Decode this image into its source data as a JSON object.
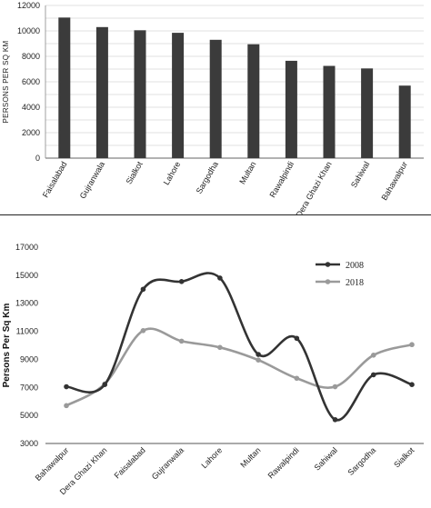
{
  "chart_data": [
    {
      "type": "bar",
      "categories": [
        "Faisalabad",
        "Gujranwala",
        "Sialkot",
        "Lahore",
        "Sargodha",
        "Multan",
        "Rawalpindi",
        "Dera Ghazi Khan",
        "Sahiwal",
        "Bahawalpur"
      ],
      "values": [
        11050,
        10300,
        10050,
        9850,
        9300,
        8950,
        7650,
        7250,
        7050,
        5700
      ],
      "ylabel": "PERSONS PER SQ KM",
      "ylim": [
        0,
        12000
      ],
      "yticks": [
        0,
        2000,
        4000,
        6000,
        8000,
        10000,
        12000
      ],
      "grid": true,
      "bar_color": "#3b3b3b"
    },
    {
      "type": "line",
      "categories": [
        "Bahawalpur",
        "Dera Ghazi Khan",
        "Faisalabad",
        "Gujranwala",
        "Lahore",
        "Multan",
        "Rawalpindi",
        "Sahiwal",
        "Sargodha",
        "Sialkot"
      ],
      "series": [
        {
          "name": "2008",
          "values": [
            7050,
            7200,
            14000,
            14550,
            14800,
            9350,
            10500,
            4700,
            7900,
            7200
          ],
          "color": "#333333"
        },
        {
          "name": "2018",
          "values": [
            5700,
            7250,
            11050,
            10300,
            9850,
            8950,
            7650,
            7050,
            9300,
            10050
          ],
          "color": "#9a9a9a"
        }
      ],
      "ylabel": "Persons Per Sq Km",
      "ylim": [
        3000,
        17000
      ],
      "yticks": [
        3000,
        5000,
        7000,
        9000,
        11000,
        13000,
        15000,
        17000
      ],
      "legend_position": "top-right",
      "grid": false
    }
  ]
}
